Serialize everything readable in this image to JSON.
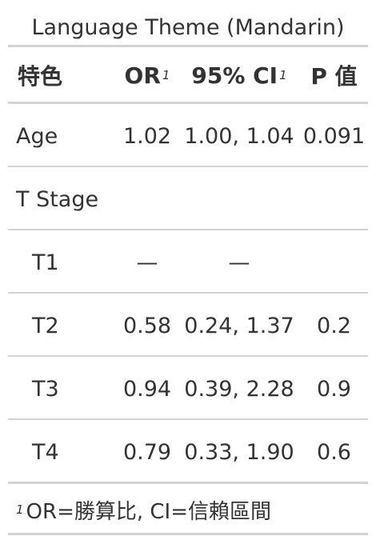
{
  "title": "Language Theme (Mandarin)",
  "columns": {
    "characteristic": "特色",
    "or": "OR",
    "ci": "95% CI",
    "p": "P 值",
    "footnote_marker": "1"
  },
  "rows": [
    {
      "label": "Age",
      "or": "1.02",
      "ci": "1.00, 1.04",
      "p": "0.091"
    },
    {
      "label": "T Stage",
      "or": "",
      "ci": "",
      "p": ""
    },
    {
      "label": "T1",
      "or": "—",
      "ci": "—",
      "p": ""
    },
    {
      "label": "T2",
      "or": "0.58",
      "ci": "0.24, 1.37",
      "p": "0.2"
    },
    {
      "label": "T3",
      "or": "0.94",
      "ci": "0.39, 2.28",
      "p": "0.9"
    },
    {
      "label": "T4",
      "or": "0.79",
      "ci": "0.33, 1.90",
      "p": "0.6"
    }
  ],
  "footnote": {
    "marker": "1",
    "text": "OR=勝算比, CI=信賴區間"
  }
}
